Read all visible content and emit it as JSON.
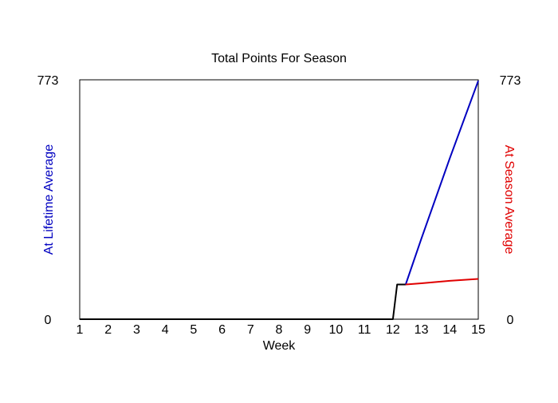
{
  "chart_data": {
    "type": "line",
    "title": "Total Points For Season",
    "xlabel": "Week",
    "ylabel_left": "At Lifetime Average",
    "ylabel_right": "At Season Average",
    "xlim": [
      1,
      15
    ],
    "ylim": [
      0,
      773
    ],
    "x_ticks": [
      "1",
      "2",
      "3",
      "4",
      "5",
      "6",
      "7",
      "8",
      "9",
      "10",
      "11",
      "12",
      "13",
      "14",
      "15"
    ],
    "y_tick_labels_left": [
      "773",
      "0"
    ],
    "y_tick_labels_right": [
      "773",
      "0"
    ],
    "grid": false,
    "colors": {
      "actual": "#000000",
      "lifetime": "#0000c0",
      "season": "#e00000",
      "axis": "#000000"
    },
    "series": [
      {
        "key": "actual",
        "x": [
          1,
          12,
          12.15,
          12.45
        ],
        "y": [
          0,
          0,
          112,
          112
        ]
      },
      {
        "key": "lifetime",
        "x": [
          12.45,
          13,
          14,
          15
        ],
        "y": [
          112,
          260,
          520,
          770
        ]
      },
      {
        "key": "season",
        "x": [
          12.45,
          13,
          14,
          15
        ],
        "y": [
          112,
          116,
          124,
          130
        ]
      }
    ]
  }
}
